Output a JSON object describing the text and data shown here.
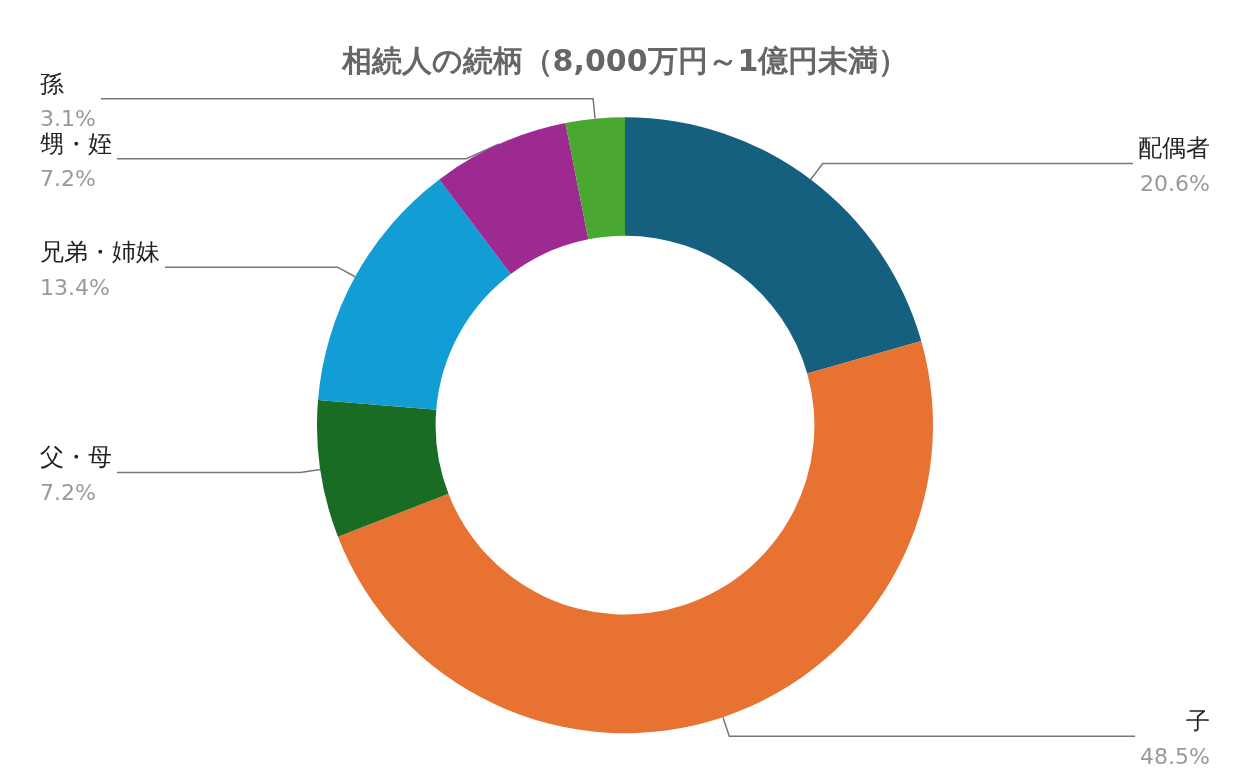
{
  "chart_data": {
    "type": "donut",
    "title": "相続人の続柄（8,000万円～1億円未満）",
    "categories": [
      "配偶者",
      "子",
      "父・母",
      "兄弟・姉妹",
      "甥・姪",
      "孫"
    ],
    "values": [
      20.6,
      48.5,
      7.2,
      13.4,
      7.2,
      3.1
    ],
    "value_labels": [
      "20.6%",
      "48.5%",
      "7.2%",
      "13.4%",
      "7.2%",
      "3.1%"
    ],
    "colors": [
      "#15607f",
      "#e87232",
      "#1a6b24",
      "#129ed5",
      "#9c2a91",
      "#4aa832"
    ],
    "legend": false
  }
}
